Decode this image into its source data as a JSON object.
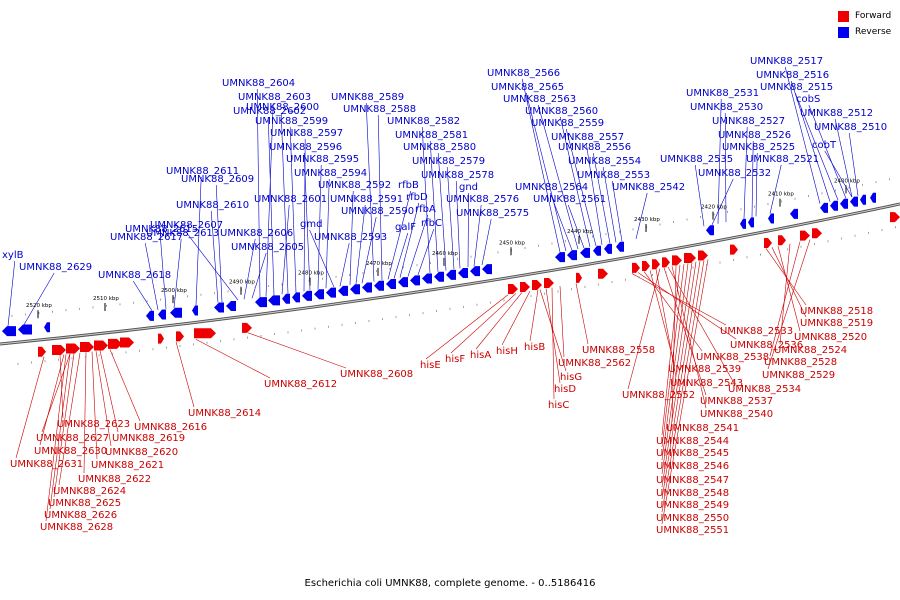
{
  "title": "Escherichia coli UMNK88, complete genome. - 0..5186416",
  "legend": {
    "forward": "Forward",
    "reverse": "Reverse"
  },
  "colors": {
    "forward": "#ee0000",
    "reverse": "#0000ee",
    "forward_label": "#cc0000",
    "reverse_label": "#0000cc"
  },
  "ticks": [
    "2520 kbp",
    "2510 kbp",
    "2500 kbp",
    "2490 kbp",
    "2480 kbp",
    "2470 kbp",
    "2460 kbp",
    "2450 kbp",
    "2440 kbp",
    "2430 kbp",
    "2420 kbp",
    "2410 kbp",
    "2400 kbp"
  ],
  "reverse_genes": [
    "xylB",
    "UMNK88_2629",
    "UMNK88_2618",
    "UMNK88_2617",
    "UMNK88_2615",
    "UMNK88_2613",
    "UMNK88_2611",
    "UMNK88_2610",
    "UMNK88_2609",
    "UMNK88_2607",
    "UMNK88_2606",
    "UMNK88_2605",
    "UMNK88_2604",
    "UMNK88_2603",
    "UMNK88_2602",
    "UMNK88_2601",
    "UMNK88_2600",
    "UMNK88_2599",
    "UMNK88_2597",
    "UMNK88_2596",
    "UMNK88_2595",
    "UMNK88_2594",
    "gmd",
    "UMNK88_2593",
    "UMNK88_2592",
    "UMNK88_2591",
    "UMNK88_2590",
    "UMNK88_2589",
    "UMNK88_2588",
    "rfbB",
    "galF",
    "rfbD",
    "rfbA",
    "rfbC",
    "UMNK88_2582",
    "UMNK88_2581",
    "UMNK88_2580",
    "UMNK88_2579",
    "UMNK88_2578",
    "gnd",
    "UMNK88_2576",
    "UMNK88_2575",
    "UMNK88_2566",
    "UMNK88_2565",
    "UMNK88_2564",
    "UMNK88_2563",
    "UMNK88_2561",
    "UMNK88_2560",
    "UMNK88_2559",
    "UMNK88_2557",
    "UMNK88_2556",
    "UMNK88_2554",
    "UMNK88_2553",
    "UMNK88_2542",
    "UMNK88_2535",
    "UMNK88_2532",
    "UMNK88_2531",
    "UMNK88_2530",
    "UMNK88_2527",
    "UMNK88_2526",
    "UMNK88_2525",
    "UMNK88_2521",
    "UMNK88_2517",
    "UMNK88_2516",
    "UMNK88_2515",
    "cobS",
    "UMNK88_2512",
    "UMNK88_2510",
    "cobT"
  ],
  "forward_genes": [
    "UMNK88_2623",
    "UMNK88_2627",
    "UMNK88_2630",
    "UMNK88_2631",
    "UMNK88_2619",
    "UMNK88_2620",
    "UMNK88_2621",
    "UMNK88_2622",
    "UMNK88_2624",
    "UMNK88_2625",
    "UMNK88_2626",
    "UMNK88_2628",
    "UMNK88_2616",
    "UMNK88_2614",
    "UMNK88_2612",
    "UMNK88_2608",
    "hisE",
    "hisF",
    "hisA",
    "hisH",
    "hisB",
    "hisG",
    "hisD",
    "hisC",
    "UMNK88_2562",
    "UMNK88_2558",
    "UMNK88_2533",
    "UMNK88_2536",
    "UMNK88_2538",
    "UMNK88_2539",
    "UMNK88_2543",
    "UMNK88_2552",
    "UMNK88_2537",
    "UMNK88_2534",
    "UMNK88_2540",
    "UMNK88_2541",
    "UMNK88_2544",
    "UMNK88_2545",
    "UMNK88_2546",
    "UMNK88_2547",
    "UMNK88_2548",
    "UMNK88_2549",
    "UMNK88_2550",
    "UMNK88_2551",
    "UMNK88_2518",
    "UMNK88_2519",
    "UMNK88_2520",
    "UMNK88_2524",
    "UMNK88_2528",
    "UMNK88_2529"
  ]
}
